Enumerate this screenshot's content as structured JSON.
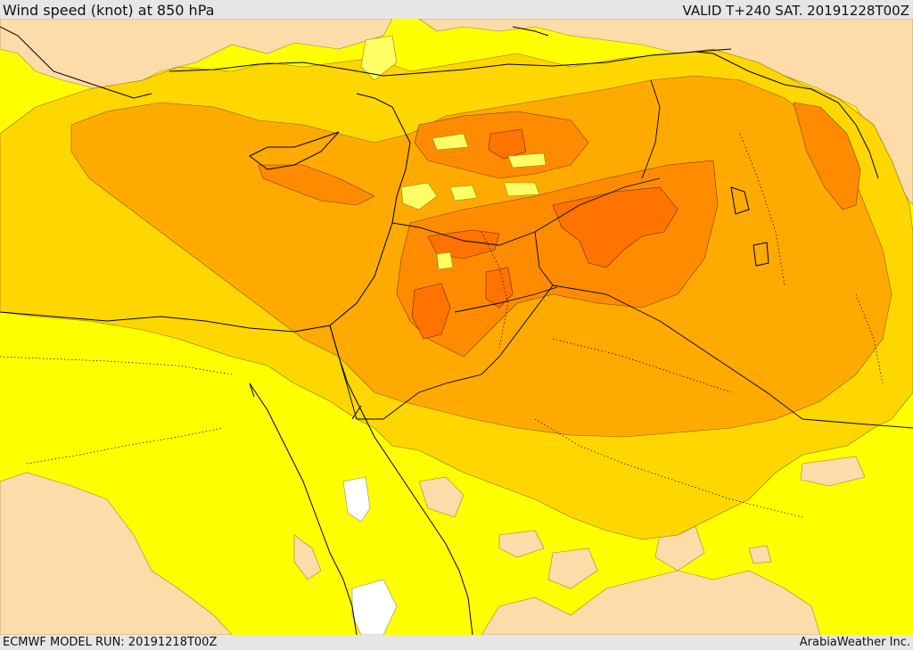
{
  "header": {
    "title": "Wind speed (knot) at 850 hPa",
    "valid": "VALID T+240 SAT. 20191228T00Z"
  },
  "footer": {
    "model_run": "ECMWF MODEL RUN: 20191218T00Z",
    "credit": "ArabiaWeather Inc."
  },
  "colors": {
    "band_lightest": "#ffffff",
    "band_tan": "#fddcaa",
    "band_yellow": "#ffff00",
    "band_gold": "#ffd700",
    "band_amber": "#ffaa00",
    "band_orange": "#ff8c00",
    "band_deep_orange": "#ff7300",
    "border": "#000000"
  }
}
